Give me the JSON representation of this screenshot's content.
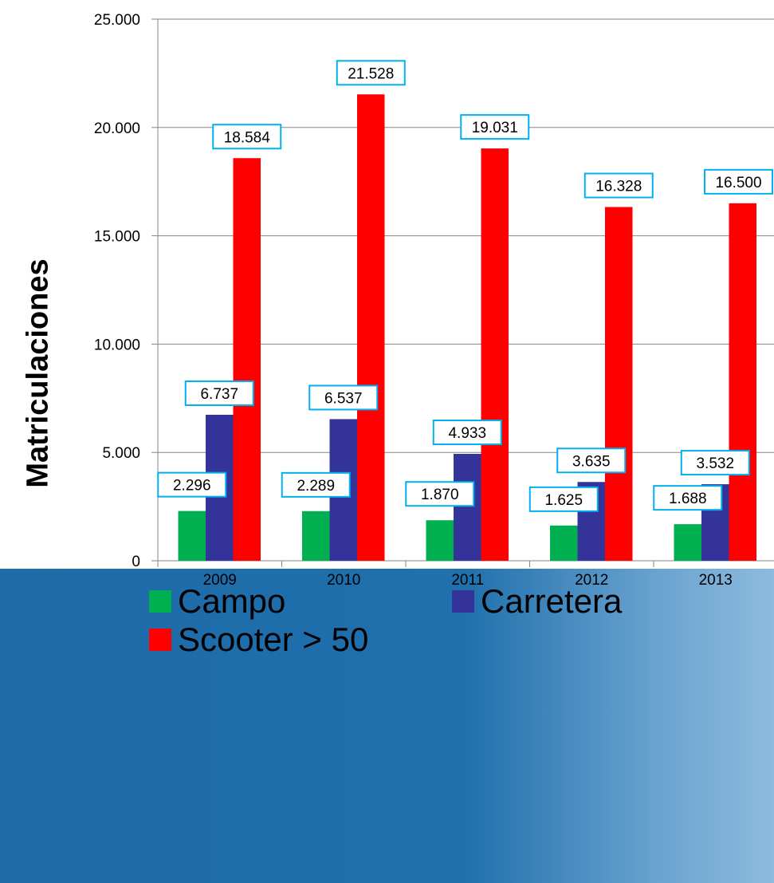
{
  "chart_data": {
    "type": "bar",
    "ylabel": "Matriculaciones",
    "categories": [
      "2009",
      "2010",
      "2011",
      "2012",
      "2013"
    ],
    "ylim": [
      0,
      25000
    ],
    "yticks": [
      0,
      5000,
      10000,
      15000,
      20000,
      25000
    ],
    "ytick_labels": [
      "0",
      "5.000",
      "10.000",
      "15.000",
      "20.000",
      "25.000"
    ],
    "grid": true,
    "legend_position": "bottom",
    "series": [
      {
        "name": "Campo",
        "color": "#00b050",
        "values": [
          2296,
          2289,
          1870,
          1625,
          1688
        ],
        "labels": [
          "2.296",
          "2.289",
          "1.870",
          "1.625",
          "1.688"
        ]
      },
      {
        "name": "Carretera",
        "color": "#333399",
        "values": [
          6737,
          6537,
          4933,
          3635,
          3532
        ],
        "labels": [
          "6.737",
          "6.537",
          "4.933",
          "3.635",
          "3.532"
        ]
      },
      {
        "name": "Scooter > 50",
        "color": "#ff0000",
        "values": [
          18584,
          21528,
          19031,
          16328,
          16500
        ],
        "labels": [
          "18.584",
          "21.528",
          "19.031",
          "16.328",
          "16.500"
        ]
      }
    ]
  }
}
